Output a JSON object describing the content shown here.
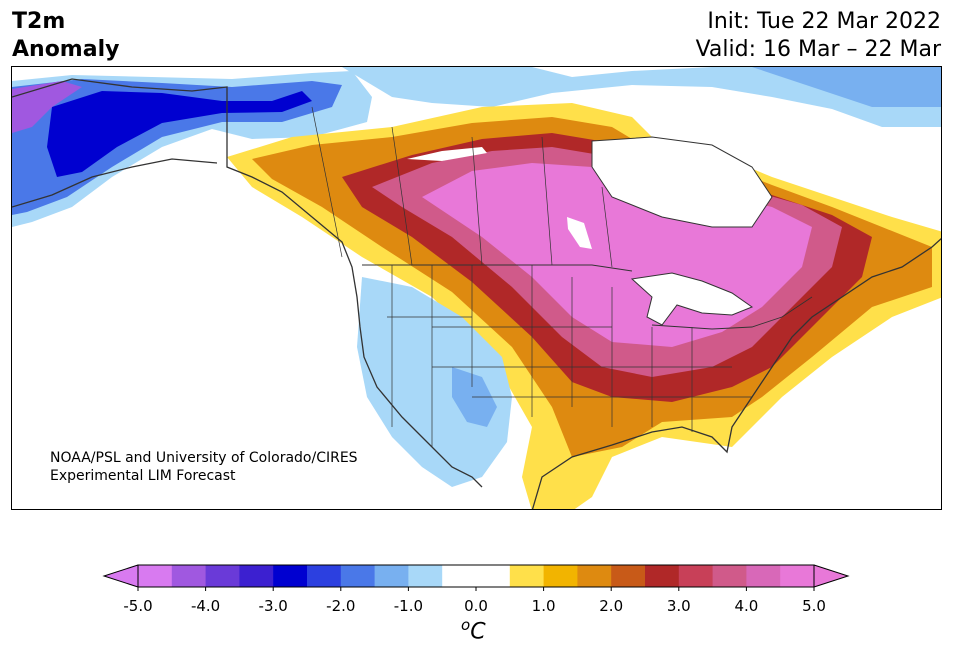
{
  "header": {
    "title_line1": "T2m",
    "title_line2": "Anomaly",
    "init": "Init: Tue 22 Mar 2022",
    "valid": "Valid: 16 Mar – 22 Mar"
  },
  "credit": {
    "line1": "NOAA/PSL and University of Colorado/CIRES",
    "line2": "Experimental LIM Forecast"
  },
  "colorbar": {
    "unit": "oC",
    "unit_base": "o",
    "unit_letter": "C",
    "ticks": [
      "-5.0",
      "-4.0",
      "-3.0",
      "-2.0",
      "-1.0",
      "0.0",
      "1.0",
      "2.0",
      "3.0",
      "4.0",
      "5.0"
    ],
    "colors": [
      "#d87af0",
      "#a058e0",
      "#6a3ad8",
      "#3c20d0",
      "#0000d0",
      "#2c40e0",
      "#4a78e8",
      "#78b0f0",
      "#a8d8f8",
      "#ffffff",
      "#ffffff",
      "#ffe04a",
      "#f2b400",
      "#de8a10",
      "#c85a18",
      "#b02828",
      "#c84058",
      "#d05a8a",
      "#d868b8",
      "#e878d8"
    ],
    "low_extend": "#d87af0",
    "high_extend": "#e878d8"
  },
  "legend_colors": {
    "land_border": "#333333",
    "lake": "#ffffff"
  }
}
